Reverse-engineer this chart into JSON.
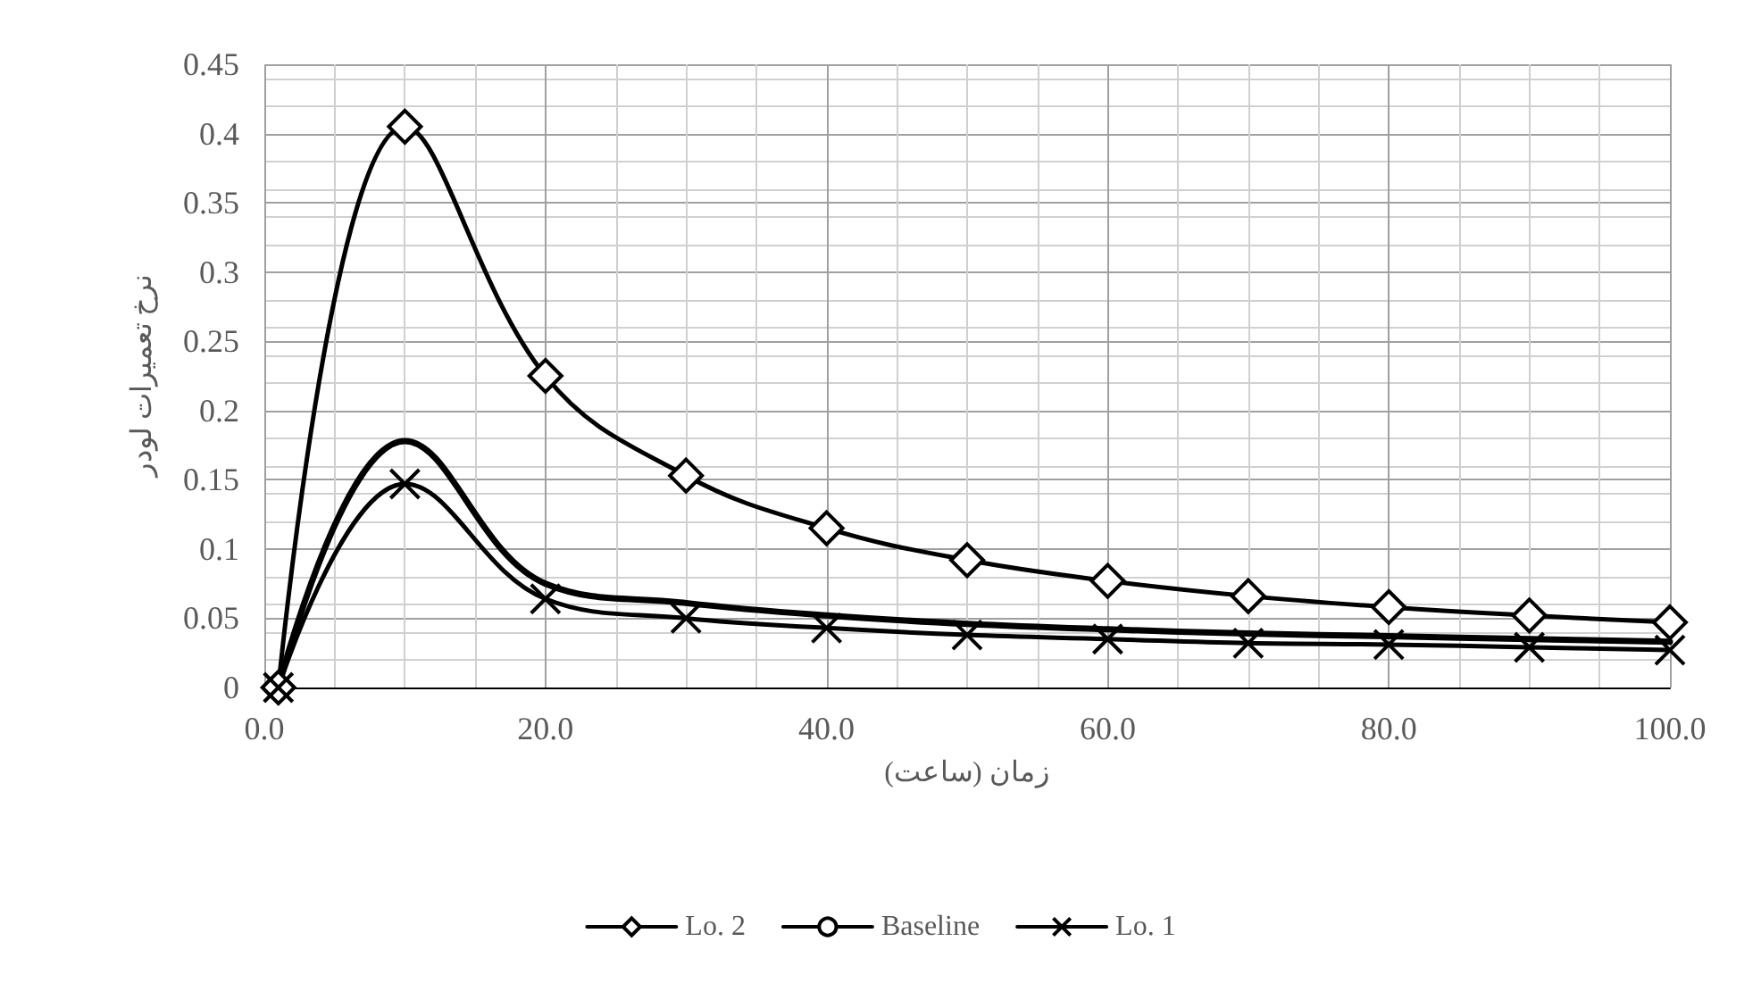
{
  "chart_data": {
    "type": "line",
    "xlabel": "زمان (ساعت)",
    "ylabel": "نرخ تعمیرات لودر",
    "x": [
      1,
      10,
      20,
      30,
      40,
      50,
      60,
      70,
      80,
      90,
      100
    ],
    "series": [
      {
        "name": "Lo. 2",
        "color": "#000000",
        "marker": "diamond",
        "values": [
          0,
          0.405,
          0.225,
          0.153,
          0.115,
          0.092,
          0.077,
          0.066,
          0.058,
          0.052,
          0.047
        ]
      },
      {
        "name": "Baseline",
        "color": "#000000",
        "marker": "none",
        "values": [
          0,
          0.178,
          0.075,
          0.061,
          0.052,
          0.046,
          0.042,
          0.039,
          0.037,
          0.035,
          0.033
        ]
      },
      {
        "name": "Lo. 1",
        "color": "#000000",
        "marker": "cross",
        "values": [
          0,
          0.147,
          0.064,
          0.05,
          0.043,
          0.038,
          0.035,
          0.032,
          0.031,
          0.029,
          0.027
        ]
      }
    ],
    "xlim": [
      0,
      100
    ],
    "xticks": [
      {
        "value": 0,
        "label": "0.0"
      },
      {
        "value": 20,
        "label": "20.0"
      },
      {
        "value": 40,
        "label": "40.0"
      },
      {
        "value": 60,
        "label": "60.0"
      },
      {
        "value": 80,
        "label": "80.0"
      },
      {
        "value": 100,
        "label": "100.0"
      }
    ],
    "ylim": [
      0,
      0.45
    ],
    "yticks": [
      0,
      0.05,
      0.1,
      0.15,
      0.2,
      0.25,
      0.3,
      0.35,
      0.4,
      0.45
    ],
    "grid": true,
    "legend": "bottom",
    "line_style": "solid"
  }
}
